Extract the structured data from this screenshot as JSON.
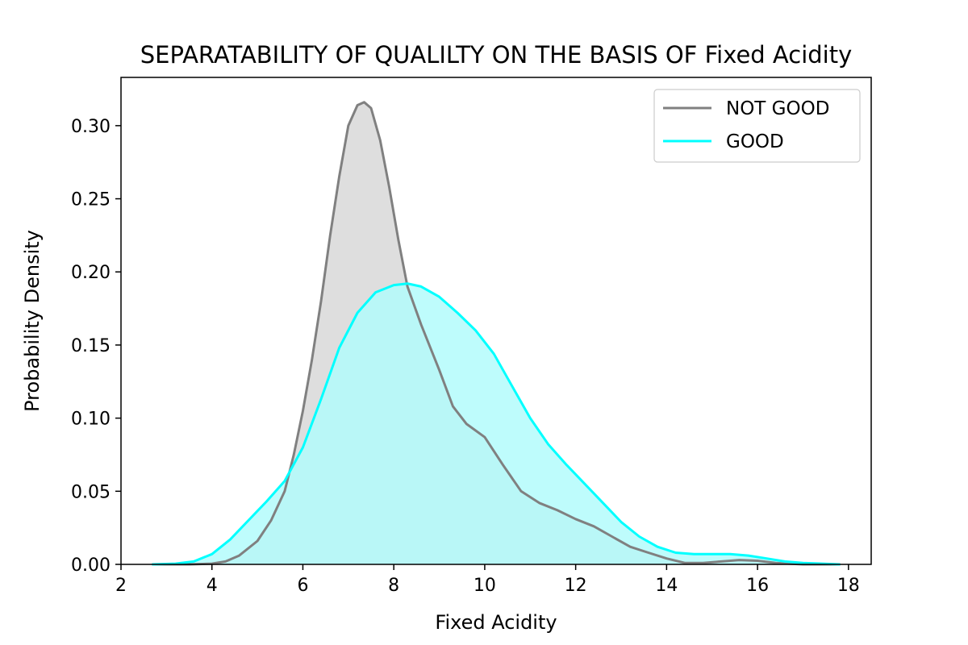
{
  "chart_data": {
    "type": "area",
    "title": "SEPARATABILITY OF QUALILTY ON THE BASIS OF Fixed Acidity",
    "xlabel": "Fixed Acidity",
    "ylabel": "Probability Density",
    "xlim": [
      2,
      18.5
    ],
    "ylim": [
      0,
      0.333
    ],
    "xticks": [
      2,
      4,
      6,
      8,
      10,
      12,
      14,
      16,
      18
    ],
    "yticks": [
      0.0,
      0.05,
      0.1,
      0.15,
      0.2,
      0.25,
      0.3
    ],
    "ytick_labels": [
      "0.00",
      "0.05",
      "0.10",
      "0.15",
      "0.20",
      "0.25",
      "0.30"
    ],
    "grid": false,
    "legend_position": "top-right",
    "series": [
      {
        "name": "NOT GOOD",
        "color": "#808080",
        "fill_color": "#dedede",
        "x": [
          2.7,
          3.5,
          4.0,
          4.3,
          4.6,
          5.0,
          5.3,
          5.6,
          5.8,
          6.0,
          6.2,
          6.4,
          6.6,
          6.8,
          7.0,
          7.2,
          7.35,
          7.5,
          7.7,
          7.9,
          8.1,
          8.3,
          8.6,
          9.0,
          9.3,
          9.6,
          10.0,
          10.4,
          10.8,
          11.2,
          11.6,
          12.0,
          12.4,
          12.8,
          13.2,
          13.6,
          14.0,
          14.4,
          14.8,
          15.2,
          15.6,
          16.0,
          16.4,
          17.0,
          17.8
        ],
        "y": [
          0.0,
          0.0,
          0.0005,
          0.002,
          0.006,
          0.016,
          0.03,
          0.05,
          0.075,
          0.105,
          0.14,
          0.18,
          0.225,
          0.265,
          0.3,
          0.314,
          0.316,
          0.312,
          0.29,
          0.258,
          0.222,
          0.19,
          0.164,
          0.133,
          0.108,
          0.096,
          0.087,
          0.068,
          0.05,
          0.042,
          0.037,
          0.031,
          0.026,
          0.019,
          0.012,
          0.008,
          0.004,
          0.001,
          0.001,
          0.002,
          0.003,
          0.0025,
          0.001,
          0.0,
          0.0
        ]
      },
      {
        "name": "GOOD",
        "color": "#00ffff",
        "fill_color": "#b3fbfb",
        "x": [
          2.7,
          3.2,
          3.6,
          4.0,
          4.4,
          4.8,
          5.2,
          5.6,
          6.0,
          6.4,
          6.8,
          7.2,
          7.6,
          8.0,
          8.3,
          8.6,
          9.0,
          9.4,
          9.8,
          10.2,
          10.6,
          11.0,
          11.4,
          11.8,
          12.2,
          12.6,
          13.0,
          13.4,
          13.8,
          14.2,
          14.6,
          15.0,
          15.4,
          15.8,
          16.2,
          16.6,
          17.0,
          17.8
        ],
        "y": [
          0.0,
          0.0005,
          0.002,
          0.007,
          0.017,
          0.03,
          0.043,
          0.057,
          0.08,
          0.113,
          0.148,
          0.172,
          0.186,
          0.191,
          0.192,
          0.19,
          0.183,
          0.172,
          0.16,
          0.144,
          0.122,
          0.1,
          0.082,
          0.068,
          0.055,
          0.042,
          0.029,
          0.019,
          0.012,
          0.008,
          0.007,
          0.007,
          0.007,
          0.006,
          0.004,
          0.002,
          0.001,
          0.0
        ]
      }
    ]
  }
}
